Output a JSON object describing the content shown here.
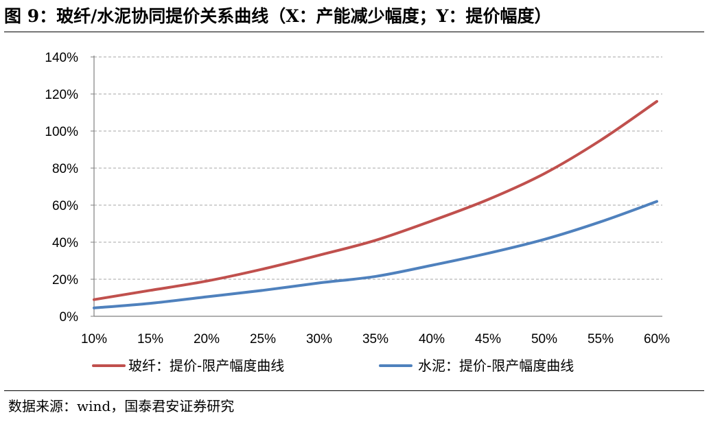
{
  "title": "图 9：玻纤/水泥协同提价关系曲线（X：产能减少幅度；Y：提价幅度）",
  "source": "数据来源：wind，国泰君安证券研究",
  "chart_data": {
    "type": "line",
    "x": [
      10,
      15,
      20,
      25,
      30,
      35,
      40,
      45,
      50,
      55,
      60
    ],
    "x_tick_labels": [
      "10%",
      "15%",
      "20%",
      "25%",
      "30%",
      "35%",
      "40%",
      "45%",
      "50%",
      "55%",
      "60%"
    ],
    "y_tick_labels": [
      "0%",
      "20%",
      "40%",
      "60%",
      "80%",
      "100%",
      "120%",
      "140%"
    ],
    "y_ticks": [
      0,
      20,
      40,
      60,
      80,
      100,
      120,
      140
    ],
    "xlim": [
      10,
      60
    ],
    "ylim": [
      0,
      140
    ],
    "grid": "horizontal dashed",
    "legend_position": "bottom",
    "series": [
      {
        "name": "玻纤：提价-限产幅度曲线",
        "color": "#C0504D",
        "values": [
          9,
          14,
          19,
          25.5,
          33,
          41,
          51.5,
          63,
          77,
          95,
          116
        ]
      },
      {
        "name": "水泥：提价-限产幅度曲线",
        "color": "#4F81BD",
        "values": [
          4.5,
          7,
          10.5,
          14,
          18,
          21.5,
          27.5,
          34,
          41.5,
          51,
          62
        ]
      }
    ]
  }
}
